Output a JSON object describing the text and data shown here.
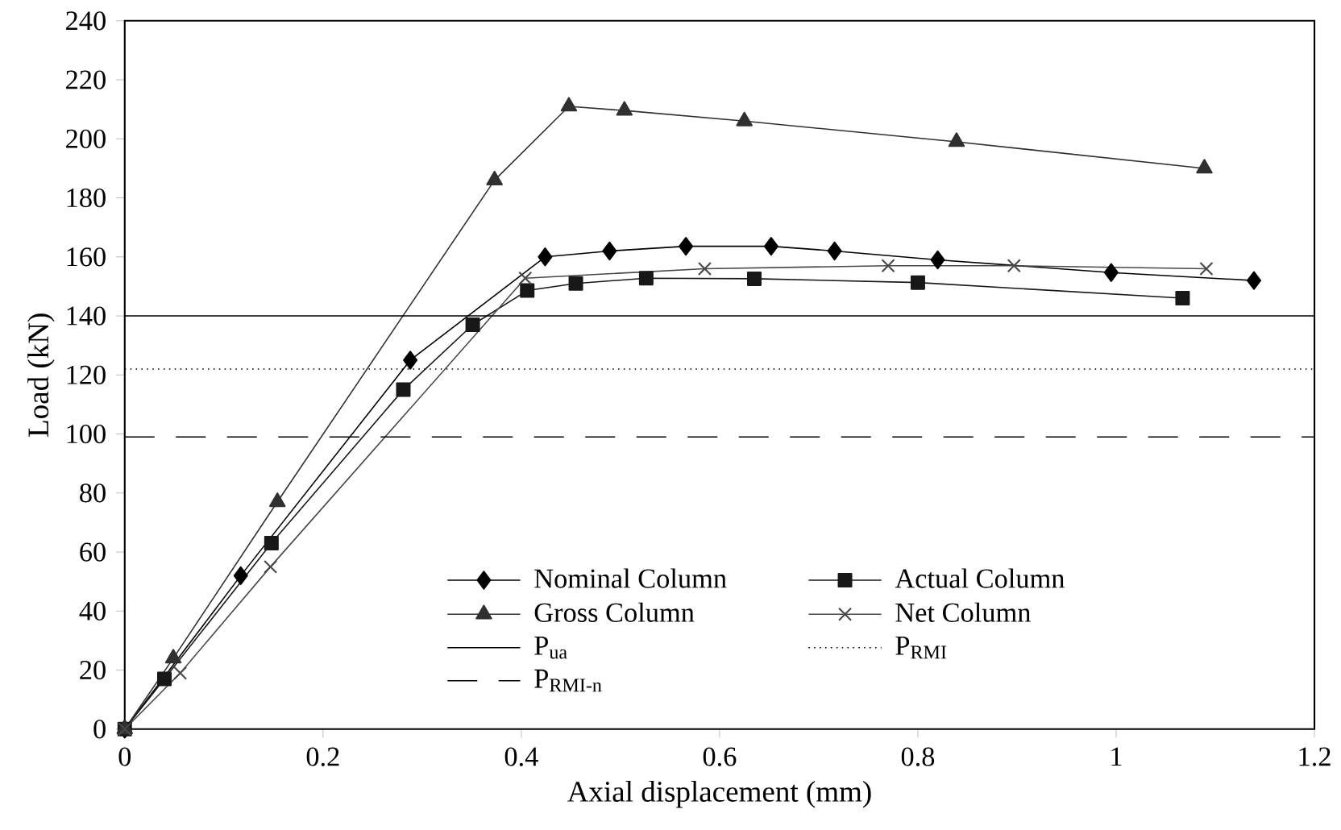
{
  "chart_data": {
    "type": "line",
    "xlabel": "Axial displacement (mm)",
    "ylabel": "Load (kN)",
    "xlim": [
      0,
      1.2
    ],
    "ylim": [
      0,
      240
    ],
    "xticks": [
      0,
      0.2,
      0.4,
      0.6,
      0.8,
      1,
      1.2
    ],
    "yticks": [
      0,
      20,
      40,
      60,
      80,
      100,
      120,
      140,
      160,
      180,
      200,
      220,
      240
    ],
    "grid": false,
    "legend": "bottom right",
    "series": [
      {
        "name": "Nominal Column",
        "color": "#000000",
        "marker": "diamond",
        "x": [
          0,
          0.039,
          0.117,
          0.288,
          0.424,
          0.489,
          0.566,
          0.652,
          0.716,
          0.82,
          0.995,
          1.139
        ],
        "values": [
          0,
          null,
          52,
          125,
          160,
          162,
          163.6,
          163.6,
          162,
          159,
          154.7,
          152
        ]
      },
      {
        "name": "Actual Column",
        "color": "#181818",
        "marker": "square",
        "x": [
          0,
          0.04,
          0.148,
          0.281,
          0.351,
          0.406,
          0.455,
          0.526,
          0.635,
          0.8,
          1.067
        ],
        "values": [
          0,
          17,
          63,
          115,
          137,
          148.6,
          151,
          152.8,
          152.6,
          151.3,
          146
        ]
      },
      {
        "name": "Gross Column",
        "color": "#303030",
        "marker": "triangle",
        "x": [
          0,
          0.049,
          0.154,
          0.373,
          0.448,
          0.504,
          0.625,
          0.839,
          1.089
        ],
        "values": [
          0,
          24,
          77,
          186,
          211,
          209.6,
          206,
          199,
          190
        ]
      },
      {
        "name": "Net Column",
        "color": "#484848",
        "marker": "cross",
        "x": [
          0,
          0.056,
          0.147,
          0.404,
          0.585,
          0.77,
          0.897,
          1.091
        ],
        "values": [
          0,
          19,
          55,
          152.8,
          156,
          157,
          157,
          156
        ]
      }
    ],
    "ref_lines": [
      {
        "axis": "y",
        "value": 140,
        "label": "P$_{ua}$",
        "color": "#000000",
        "line_style": "solid"
      },
      {
        "axis": "y",
        "value": 122,
        "label": "P$_{RMI}$",
        "color": "#000000",
        "line_style": "dotted"
      },
      {
        "axis": "y",
        "value": 99,
        "label": "P$_{RMI-n}$",
        "color": "#000000",
        "line_style": "dashed"
      }
    ]
  }
}
